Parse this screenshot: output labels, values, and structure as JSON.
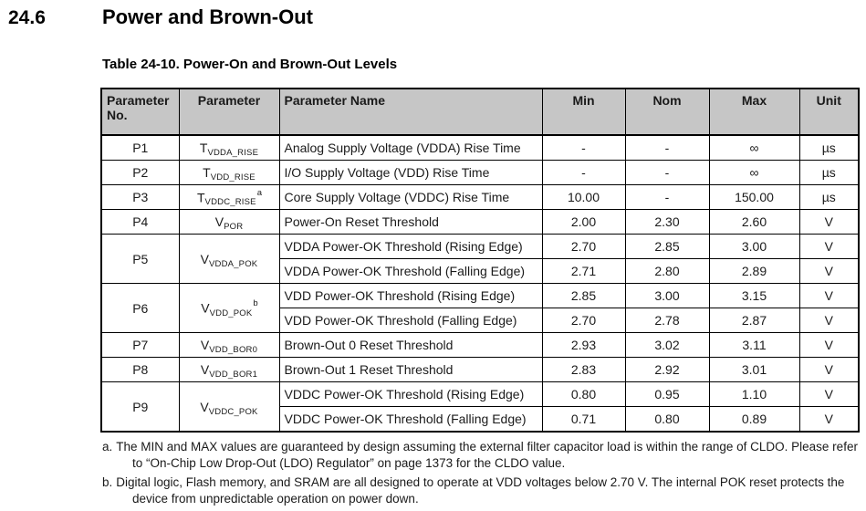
{
  "heading": {
    "number": "24.6",
    "title": "Power and Brown-Out"
  },
  "table": {
    "caption": "Table 24-10. Power-On and Brown-Out Levels",
    "headers": [
      "Parameter No.",
      "Parameter",
      "Parameter Name",
      "Min",
      "Nom",
      "Max",
      "Unit"
    ],
    "rows": [
      {
        "no": "P1",
        "symbol": {
          "base": "T",
          "sub": "VDDA_RISE",
          "sup": ""
        },
        "entries": [
          {
            "name": "Analog Supply Voltage (VDDA) Rise Time",
            "min": "-",
            "nom": "-",
            "max": "∞",
            "unit": "µs"
          }
        ]
      },
      {
        "no": "P2",
        "symbol": {
          "base": "T",
          "sub": "VDD_RISE",
          "sup": ""
        },
        "entries": [
          {
            "name": "I/O Supply Voltage (VDD) Rise Time",
            "min": "-",
            "nom": "-",
            "max": "∞",
            "unit": "µs"
          }
        ]
      },
      {
        "no": "P3",
        "symbol": {
          "base": "T",
          "sub": "VDDC_RISE",
          "sup": "a"
        },
        "entries": [
          {
            "name": "Core Supply Voltage (VDDC) Rise Time",
            "min": "10.00",
            "nom": "-",
            "max": "150.00",
            "unit": "µs"
          }
        ]
      },
      {
        "no": "P4",
        "symbol": {
          "base": "V",
          "sub": "POR",
          "sup": ""
        },
        "entries": [
          {
            "name": "Power-On Reset Threshold",
            "min": "2.00",
            "nom": "2.30",
            "max": "2.60",
            "unit": "V"
          }
        ]
      },
      {
        "no": "P5",
        "symbol": {
          "base": "V",
          "sub": "VDDA_POK",
          "sup": ""
        },
        "entries": [
          {
            "name": "VDDA Power-OK Threshold (Rising Edge)",
            "min": "2.70",
            "nom": "2.85",
            "max": "3.00",
            "unit": "V"
          },
          {
            "name": "VDDA Power-OK Threshold (Falling Edge)",
            "min": "2.71",
            "nom": "2.80",
            "max": "2.89",
            "unit": "V"
          }
        ]
      },
      {
        "no": "P6",
        "symbol": {
          "base": "V",
          "sub": "VDD_POK",
          "sup": "b"
        },
        "entries": [
          {
            "name": "VDD Power-OK Threshold (Rising Edge)",
            "min": "2.85",
            "nom": "3.00",
            "max": "3.15",
            "unit": "V"
          },
          {
            "name": "VDD Power-OK Threshold (Falling Edge)",
            "min": "2.70",
            "nom": "2.78",
            "max": "2.87",
            "unit": "V"
          }
        ]
      },
      {
        "no": "P7",
        "symbol": {
          "base": "V",
          "sub": "VDD_BOR0",
          "sup": ""
        },
        "entries": [
          {
            "name": "Brown-Out 0 Reset Threshold",
            "min": "2.93",
            "nom": "3.02",
            "max": "3.11",
            "unit": "V"
          }
        ]
      },
      {
        "no": "P8",
        "symbol": {
          "base": "V",
          "sub": "VDD_BOR1",
          "sup": ""
        },
        "entries": [
          {
            "name": "Brown-Out 1 Reset Threshold",
            "min": "2.83",
            "nom": "2.92",
            "max": "3.01",
            "unit": "V"
          }
        ]
      },
      {
        "no": "P9",
        "symbol": {
          "base": "V",
          "sub": "VDDC_POK",
          "sup": ""
        },
        "entries": [
          {
            "name": "VDDC Power-OK Threshold (Rising Edge)",
            "min": "0.80",
            "nom": "0.95",
            "max": "1.10",
            "unit": "V"
          },
          {
            "name": "VDDC Power-OK Threshold (Falling Edge)",
            "min": "0.71",
            "nom": "0.80",
            "max": "0.89",
            "unit": "V"
          }
        ]
      }
    ]
  },
  "footnotes": [
    {
      "label": "a.",
      "text": "The MIN and MAX values are guaranteed by design assuming the external filter capacitor load is within the range of CLDO. Please refer to “On-Chip Low Drop-Out (LDO) Regulator” on page 1373 for the CLDO value."
    },
    {
      "label": "b.",
      "text": "Digital logic, Flash memory, and SRAM are all designed to operate at VDD voltages below 2.70 V. The internal POK reset protects the device from unpredictable operation on power down."
    }
  ],
  "colors": {
    "header_bg": "#c6c6c6",
    "border": "#000000",
    "text": "#1a1a1a"
  }
}
